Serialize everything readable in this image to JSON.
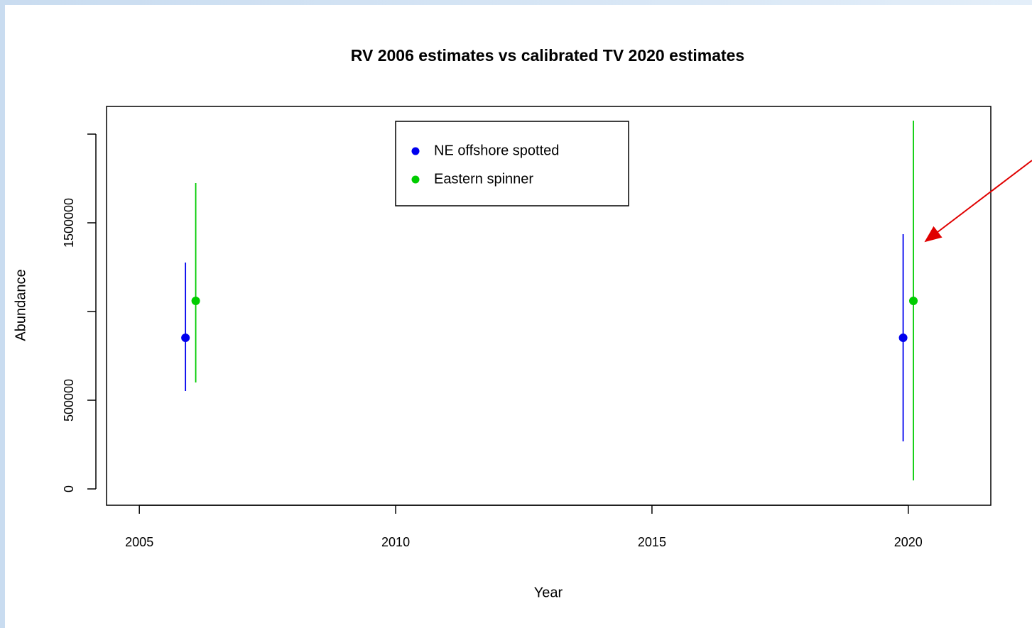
{
  "chart_data": {
    "type": "errorbar",
    "title": "RV 2006 estimates vs calibrated TV 2020 estimates",
    "x_label": "Year",
    "y_label": "Abundance",
    "xlim": [
      2004.36,
      2021.61
    ],
    "xticks": [
      2005,
      2010,
      2015,
      2020
    ],
    "ylim": [
      -92000,
      2156000
    ],
    "yticks": [
      0,
      500000,
      {
        "value": 1000000,
        "label": null
      },
      1500000,
      {
        "value": 2000000,
        "label": null
      }
    ],
    "legend": "top",
    "series": [
      {
        "name": "NE offshore spotted",
        "color": "#0000ee",
        "x": [
          2005.9,
          2019.9
        ],
        "values": [
          852000,
          852000
        ],
        "lower": [
          552000,
          268000
        ],
        "upper": [
          1276000,
          1436000
        ]
      },
      {
        "name": "Eastern spinner",
        "color": "#00cc00",
        "x": [
          2006.1,
          2020.1
        ],
        "values": [
          1060000,
          1060000
        ],
        "lower": [
          600000,
          48000
        ],
        "upper": [
          1724000,
          2076000
        ]
      }
    ]
  }
}
